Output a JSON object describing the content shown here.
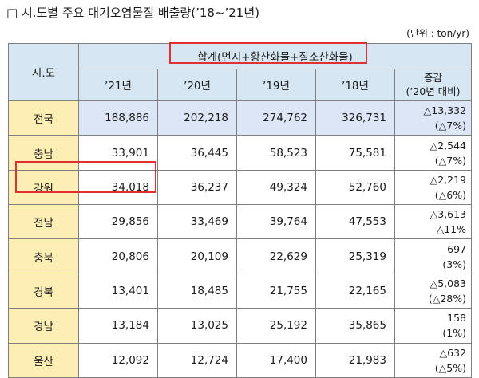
{
  "title": "□ 시.도별 주요 대기오염물질 배출량(’18~’21년)",
  "unit": "(단위 : ton/yr)",
  "table": {
    "region_header": "시.도",
    "group_header": "합계(먼지+황산화물+질소산화물)",
    "years": [
      "’21년",
      "’20년",
      "’19년",
      "’18년"
    ],
    "change_header_1": "증감",
    "change_header_2": "(’20년 대비)",
    "rows": [
      {
        "region": "전국",
        "v21": "188,886",
        "v20": "202,218",
        "v19": "274,762",
        "v18": "326,731",
        "chg": "△13,332",
        "chg_pct": "(△7%)"
      },
      {
        "region": "충남",
        "v21": "33,901",
        "v20": "36,445",
        "v19": "58,523",
        "v18": "75,581",
        "chg": "△2,544",
        "chg_pct": "(△7%)"
      },
      {
        "region": "강원",
        "v21": "34,018",
        "v20": "36,237",
        "v19": "49,324",
        "v18": "52,760",
        "chg": "△2,219",
        "chg_pct": "(△6%)"
      },
      {
        "region": "전남",
        "v21": "29,856",
        "v20": "33,469",
        "v19": "39,764",
        "v18": "47,553",
        "chg": "△3,613",
        "chg_pct": "△11%"
      },
      {
        "region": "충북",
        "v21": "20,806",
        "v20": "20,109",
        "v19": "22,629",
        "v18": "25,319",
        "chg": "697",
        "chg_pct": "(3%)"
      },
      {
        "region": "경북",
        "v21": "13,401",
        "v20": "18,485",
        "v19": "21,755",
        "v18": "22,165",
        "chg": "△5,083",
        "chg_pct": "(△28%)"
      },
      {
        "region": "경남",
        "v21": "13,184",
        "v20": "13,025",
        "v19": "25,192",
        "v18": "35,865",
        "chg": "158",
        "chg_pct": "(1%)"
      },
      {
        "region": "울산",
        "v21": "12,092",
        "v20": "12,724",
        "v19": "17,400",
        "v18": "21,983",
        "chg": "△632",
        "chg_pct": "(△5%)"
      }
    ]
  }
}
